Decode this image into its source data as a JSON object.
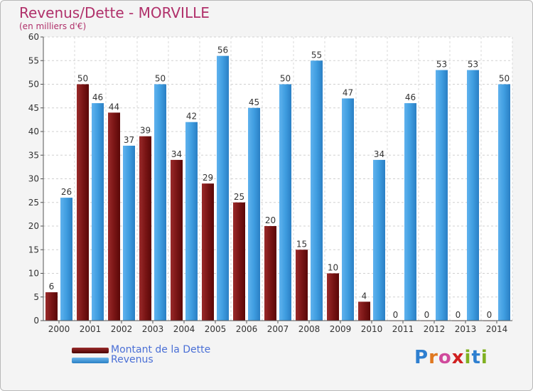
{
  "header": {
    "title": "Revenus/Dette - MORVILLE",
    "subtitle": "(en milliers d'€)"
  },
  "legend": {
    "dette_label": "Montant de la Dette",
    "revenus_label": "Revenus"
  },
  "colors": {
    "dette": "#8b1a1a",
    "dette_dark": "#5a0a0a",
    "revenus": "#3f9de0",
    "revenus_light": "#6cb8ef",
    "title": "#b0306a",
    "legend_text": "#4a6fd6"
  },
  "logo": {
    "text": "Proxiti",
    "letter_colors": [
      "#2e7fd0",
      "#e07820",
      "#d04a9c",
      "#d02020",
      "#80b020",
      "#2e7fd0",
      "#80b020"
    ]
  },
  "chart_data": {
    "type": "bar",
    "title": "Revenus/Dette - MORVILLE",
    "subtitle": "(en milliers d'€)",
    "categories": [
      "2000",
      "2001",
      "2002",
      "2003",
      "2004",
      "2005",
      "2006",
      "2007",
      "2008",
      "2009",
      "2010",
      "2011",
      "2012",
      "2013",
      "2014"
    ],
    "series": [
      {
        "name": "Montant de la Dette",
        "values": [
          6,
          50,
          44,
          39,
          34,
          29,
          25,
          20,
          15,
          10,
          4,
          0,
          0,
          0,
          0
        ]
      },
      {
        "name": "Revenus",
        "values": [
          26,
          46,
          37,
          50,
          42,
          56,
          45,
          50,
          55,
          47,
          34,
          46,
          53,
          53,
          50
        ]
      }
    ],
    "ylim": [
      0,
      60
    ],
    "yticks": [
      0,
      5,
      10,
      15,
      20,
      25,
      30,
      35,
      40,
      45,
      50,
      55,
      60
    ],
    "grid": true,
    "legend_position": "bottom-left"
  }
}
